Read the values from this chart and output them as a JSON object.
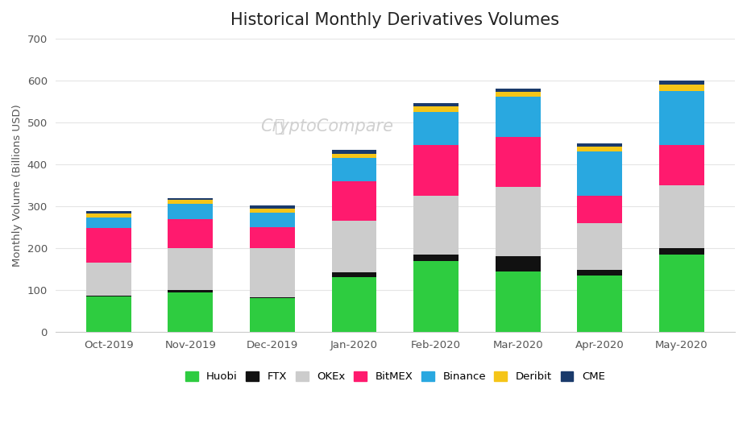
{
  "title": "Historical Monthly Derivatives Volumes",
  "ylabel": "Monthly Volume (Billions USD)",
  "categories": [
    "Oct-2019",
    "Nov-2019",
    "Dec-2019",
    "Jan-2020",
    "Feb-2020",
    "Mar-2020",
    "Apr-2020",
    "May-2020"
  ],
  "series": {
    "Huobi": [
      85,
      95,
      80,
      130,
      170,
      145,
      135,
      185
    ],
    "FTX": [
      2,
      5,
      3,
      13,
      15,
      35,
      13,
      15
    ],
    "OKEx": [
      78,
      100,
      117,
      122,
      140,
      165,
      112,
      150
    ],
    "BitMEX": [
      83,
      70,
      50,
      95,
      120,
      120,
      65,
      95
    ],
    "Binance": [
      25,
      35,
      35,
      55,
      80,
      97,
      105,
      130
    ],
    "Deribit": [
      10,
      10,
      10,
      10,
      13,
      11,
      12,
      15
    ],
    "CME": [
      5,
      5,
      7,
      10,
      7,
      7,
      8,
      10
    ]
  },
  "colors": {
    "Huobi": "#2ecc40",
    "FTX": "#111111",
    "OKEx": "#cccccc",
    "BitMEX": "#ff1a6e",
    "Binance": "#29a8e0",
    "Deribit": "#f5c518",
    "CME": "#1a3a6b"
  },
  "ylim": [
    0,
    700
  ],
  "yticks": [
    0,
    100,
    200,
    300,
    400,
    500,
    600,
    700
  ],
  "background_color": "#ffffff",
  "watermark": "CryptoCompare",
  "legend_order": [
    "Huobi",
    "FTX",
    "OKEx",
    "BitMEX",
    "Binance",
    "Deribit",
    "CME"
  ]
}
